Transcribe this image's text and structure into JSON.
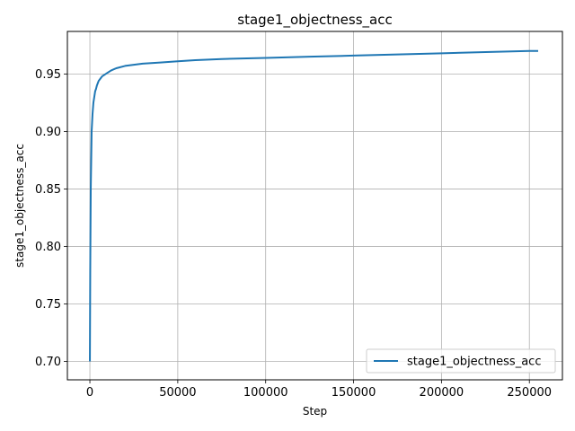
{
  "chart_data": {
    "type": "line",
    "title": "stage1_objectness_acc",
    "xlabel": "Step",
    "ylabel": "stage1_objectness_acc",
    "xlim": [
      -12800,
      268800
    ],
    "ylim": [
      0.684,
      0.987
    ],
    "xticks": [
      0,
      50000,
      100000,
      150000,
      200000,
      250000
    ],
    "yticks": [
      0.7,
      0.75,
      0.8,
      0.85,
      0.9,
      0.95
    ],
    "grid": true,
    "legend_position": "lower-right",
    "series": [
      {
        "name": "stage1_objectness_acc",
        "color": "#1f77b4",
        "x": [
          0,
          200,
          500,
          800,
          1000,
          1500,
          2000,
          2500,
          3000,
          3500,
          4000,
          4500,
          5000,
          6000,
          7000,
          8000,
          10000,
          12000,
          15000,
          20000,
          25000,
          30000,
          40000,
          50000,
          60000,
          75000,
          100000,
          125000,
          150000,
          175000,
          200000,
          225000,
          250000,
          255000
        ],
        "y": [
          0.7,
          0.78,
          0.85,
          0.88,
          0.9,
          0.915,
          0.925,
          0.93,
          0.935,
          0.937,
          0.94,
          0.942,
          0.944,
          0.946,
          0.948,
          0.949,
          0.951,
          0.953,
          0.955,
          0.957,
          0.958,
          0.959,
          0.96,
          0.961,
          0.962,
          0.963,
          0.964,
          0.965,
          0.966,
          0.967,
          0.968,
          0.969,
          0.97,
          0.97
        ]
      }
    ]
  }
}
